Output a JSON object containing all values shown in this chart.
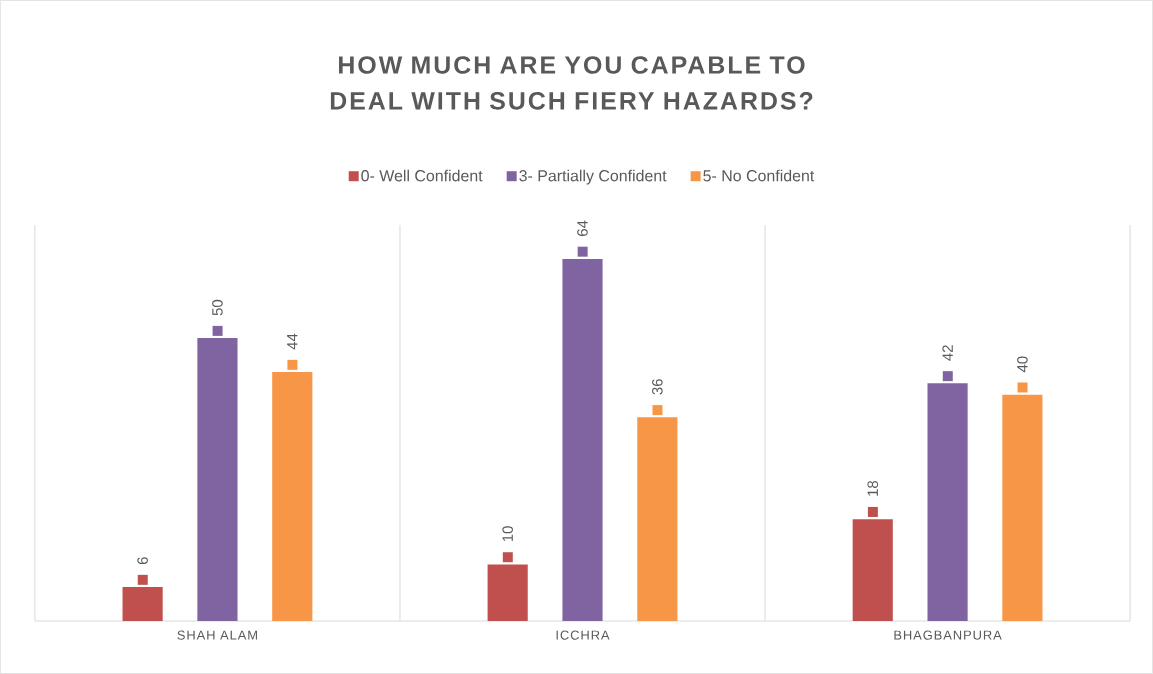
{
  "chart_data": {
    "type": "bar",
    "title": "HOW MUCH ARE YOU CAPABLE TO DEAL WITH SUCH FIERY HAZARDS?",
    "categories": [
      "SHAH ALAM",
      "ICCHRA",
      "BHAGBANPURA"
    ],
    "series": [
      {
        "name": "0- Well Confident",
        "color": "#c0504d",
        "values": [
          6,
          10,
          18
        ]
      },
      {
        "name": "3- Partially Confident",
        "color": "#8064a2",
        "values": [
          50,
          64,
          42
        ]
      },
      {
        "name": "5- No Confident",
        "color": "#f79646",
        "values": [
          44,
          36,
          40
        ]
      }
    ],
    "ylim": [
      0,
      70
    ],
    "data_labels": true,
    "grid": "x",
    "legend": "top",
    "tick_labels": "x"
  }
}
